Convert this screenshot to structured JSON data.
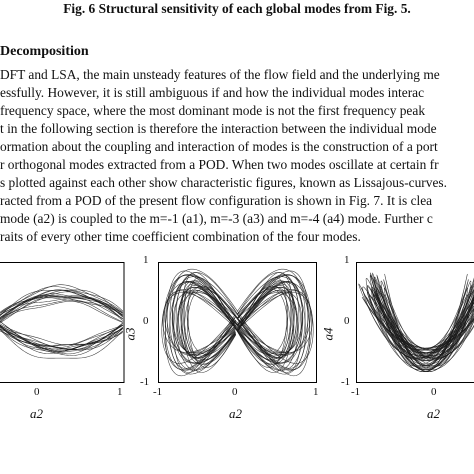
{
  "caption": "Fig. 6    Structural sensitivity of each global modes from Fig.  5.",
  "section_heading": "Decomposition",
  "paragraph_lines": [
    "DFT and LSA, the main unsteady features of the flow field and the underlying me",
    "essfully.  However, it is still ambiguous if and how the individual modes interac",
    "frequency space, where the most dominant mode is not the first frequency peak",
    "t in the following section is therefore the interaction between the individual mode",
    "ormation about the coupling and interaction of modes is the construction of a port",
    "r orthogonal modes extracted from a POD. When two modes oscillate at certain fr",
    "s plotted against each other show characteristic figures, known as Lissajous-curves.",
    "racted from a POD of the present flow configuration is shown in Fig.  7.  It is clea",
    "mode (a2) is coupled to the m=-1 (a1), m=-3 (a3) and m=-4 (a4) mode.  Further c",
    "raits of every other time coefficient combination of the four modes."
  ],
  "plots": [
    {
      "name": "a1-vs-a2",
      "xlabel": "a2",
      "ylabel": "",
      "x_ticks": [
        "0",
        "1"
      ],
      "y_ticks": [],
      "pattern": "parabola-bundle"
    },
    {
      "name": "a3-vs-a2",
      "xlabel": "a2",
      "ylabel": "a3",
      "x_ticks": [
        "-1",
        "0",
        "1"
      ],
      "y_ticks": [
        "1",
        "0",
        "-1"
      ],
      "pattern": "lissajous-1-2"
    },
    {
      "name": "a4-vs-a2",
      "xlabel": "a2",
      "ylabel": "a4",
      "x_ticks": [
        "-1",
        "0"
      ],
      "y_ticks": [
        "1",
        "0",
        "-1"
      ],
      "pattern": "lissajous-butterfly"
    }
  ],
  "colors": {
    "text": "#111111",
    "curve": "#1a1a1a",
    "frame": "#000000"
  }
}
